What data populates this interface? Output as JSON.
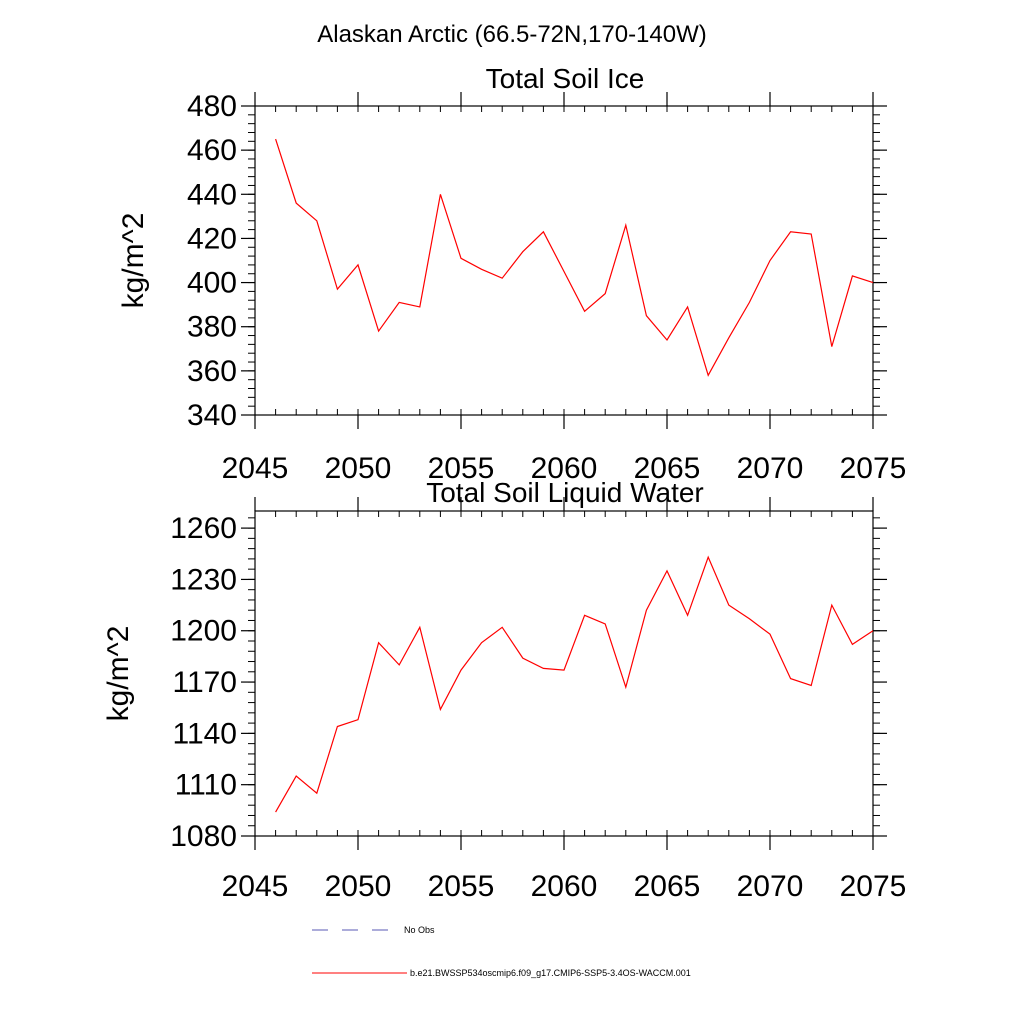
{
  "page_title": "Alaskan Arctic (66.5-72N,170-140W)",
  "colors": {
    "series": "#ff0000",
    "obs": "#5a5ab4",
    "axis": "#000000"
  },
  "chart_data": [
    {
      "type": "line",
      "title": "Total Soil Ice",
      "xlabel": "",
      "ylabel": "kg/m^2",
      "xlim": [
        2045,
        2075
      ],
      "ylim": [
        340,
        480
      ],
      "x_ticks": [
        "2045",
        "2050",
        "2055",
        "2060",
        "2065",
        "2070",
        "2075"
      ],
      "y_ticks": [
        "340",
        "360",
        "380",
        "400",
        "420",
        "440",
        "460",
        "480"
      ],
      "x": [
        2046,
        2047,
        2048,
        2049,
        2050,
        2051,
        2052,
        2053,
        2054,
        2055,
        2056,
        2057,
        2058,
        2059,
        2060,
        2061,
        2062,
        2063,
        2064,
        2065,
        2066,
        2067,
        2068,
        2069,
        2070,
        2071,
        2072,
        2073,
        2074,
        2075
      ],
      "series": [
        {
          "name": "b.e21.BWSSP534oscmip6.f09_g17.CMIP6-SSP5-3.4OS-WACCM.001",
          "values": [
            465,
            436,
            428,
            397,
            408,
            378,
            391,
            389,
            440,
            411,
            406,
            402,
            414,
            423,
            405,
            387,
            395,
            426,
            385,
            374,
            389,
            358,
            375,
            391,
            410,
            423,
            422,
            371,
            403,
            400
          ]
        }
      ]
    },
    {
      "type": "line",
      "title": "Total Soil Liquid Water",
      "xlabel": "",
      "ylabel": "kg/m^2",
      "xlim": [
        2045,
        2075
      ],
      "ylim": [
        1080,
        1270
      ],
      "x_ticks": [
        "2045",
        "2050",
        "2055",
        "2060",
        "2065",
        "2070",
        "2075"
      ],
      "y_ticks": [
        "1080",
        "1110",
        "1140",
        "1170",
        "1200",
        "1230",
        "1260"
      ],
      "x": [
        2046,
        2047,
        2048,
        2049,
        2050,
        2051,
        2052,
        2053,
        2054,
        2055,
        2056,
        2057,
        2058,
        2059,
        2060,
        2061,
        2062,
        2063,
        2064,
        2065,
        2066,
        2067,
        2068,
        2069,
        2070,
        2071,
        2072,
        2073,
        2074,
        2075
      ],
      "series": [
        {
          "name": "b.e21.BWSSP534oscmip6.f09_g17.CMIP6-SSP5-3.4OS-WACCM.001",
          "values": [
            1094,
            1115,
            1105,
            1144,
            1148,
            1193,
            1180,
            1202,
            1154,
            1177,
            1193,
            1202,
            1184,
            1178,
            1177,
            1209,
            1204,
            1167,
            1212,
            1235,
            1209,
            1243,
            1215,
            1207,
            1198,
            1172,
            1168,
            1215,
            1192,
            1200
          ]
        }
      ]
    }
  ],
  "legend": [
    {
      "label": "No Obs",
      "style": "dashed"
    },
    {
      "label": "b.e21.BWSSP534oscmip6.f09_g17.CMIP6-SSP5-3.4OS-WACCM.001",
      "style": "solid"
    }
  ]
}
